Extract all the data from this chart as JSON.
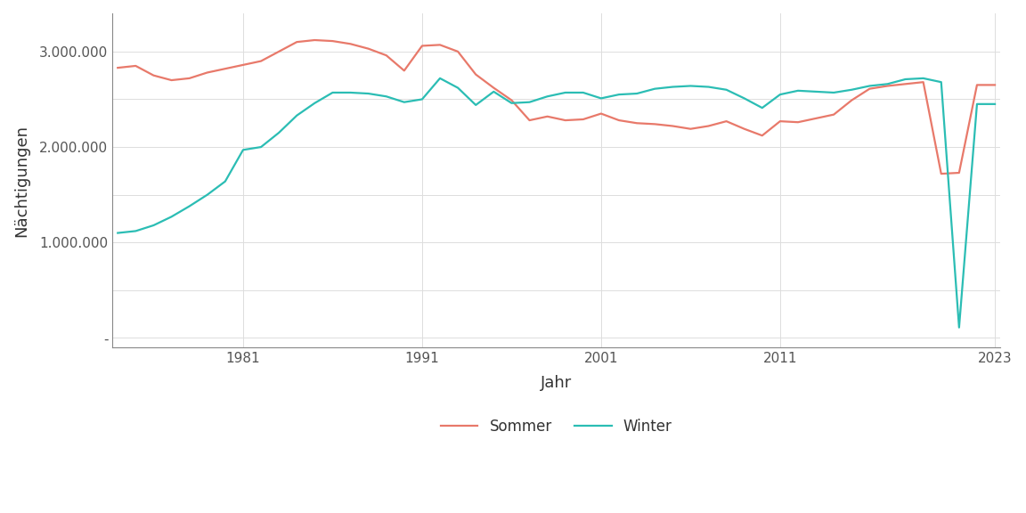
{
  "xlabel": "Jahr",
  "ylabel": "Nächtigungen",
  "background_color": "#ffffff",
  "panel_color": "#f7f7f7",
  "sommer_color": "#E8796A",
  "winter_color": "#2BBDB4",
  "line_width": 1.6,
  "years": [
    1974,
    1975,
    1976,
    1977,
    1978,
    1979,
    1980,
    1981,
    1982,
    1983,
    1984,
    1985,
    1986,
    1987,
    1988,
    1989,
    1990,
    1991,
    1992,
    1993,
    1994,
    1995,
    1996,
    1997,
    1998,
    1999,
    2000,
    2001,
    2002,
    2003,
    2004,
    2005,
    2006,
    2007,
    2008,
    2009,
    2010,
    2011,
    2012,
    2013,
    2014,
    2015,
    2016,
    2017,
    2018,
    2019,
    2020,
    2021,
    2022,
    2023
  ],
  "sommer": [
    2830000,
    2850000,
    2750000,
    2700000,
    2720000,
    2780000,
    2820000,
    2860000,
    2900000,
    3000000,
    3100000,
    3120000,
    3110000,
    3080000,
    3030000,
    2960000,
    2800000,
    3060000,
    3070000,
    3000000,
    2760000,
    2620000,
    2490000,
    2280000,
    2320000,
    2280000,
    2290000,
    2350000,
    2280000,
    2250000,
    2240000,
    2220000,
    2190000,
    2220000,
    2270000,
    2190000,
    2120000,
    2270000,
    2260000,
    2300000,
    2340000,
    2490000,
    2610000,
    2640000,
    2660000,
    2680000,
    1720000,
    1730000,
    2650000,
    2650000
  ],
  "winter": [
    1100000,
    1120000,
    1180000,
    1270000,
    1380000,
    1500000,
    1640000,
    1970000,
    2000000,
    2150000,
    2330000,
    2460000,
    2570000,
    2570000,
    2560000,
    2530000,
    2470000,
    2500000,
    2720000,
    2620000,
    2440000,
    2580000,
    2460000,
    2470000,
    2530000,
    2570000,
    2570000,
    2510000,
    2550000,
    2560000,
    2610000,
    2630000,
    2640000,
    2630000,
    2600000,
    2510000,
    2410000,
    2550000,
    2590000,
    2580000,
    2570000,
    2600000,
    2640000,
    2660000,
    2710000,
    2720000,
    2680000,
    110000,
    2450000,
    2450000
  ],
  "ylim": [
    -100000,
    3400000
  ],
  "ytick_positions": [
    0,
    500000,
    1000000,
    1500000,
    2000000,
    2500000,
    3000000
  ],
  "ytick_labels": [
    "-",
    "",
    "1.000.000",
    "",
    "2.000.000",
    "",
    "3.000.000"
  ],
  "xticks": [
    1981,
    1991,
    2001,
    2011,
    2023
  ],
  "legend_labels": [
    "Sommer",
    "Winter"
  ],
  "grid_color": "#dddddd",
  "tick_color": "#555555",
  "label_fontsize": 13,
  "tick_fontsize": 11
}
